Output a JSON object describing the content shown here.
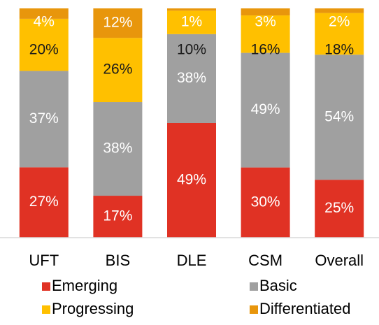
{
  "chart_data": {
    "type": "bar",
    "stacked": "percent",
    "categories": [
      "UFT",
      "BIS",
      "DLE",
      "CSM",
      "Overall"
    ],
    "series": [
      {
        "name": "Emerging",
        "color": "#e03224",
        "label_color": "#ffffff",
        "values": [
          27,
          17,
          49,
          30,
          25
        ],
        "value_labels": [
          "27%",
          "17%",
          "49%",
          "30%",
          "25%"
        ]
      },
      {
        "name": "Basic",
        "color": "#a0a0a0",
        "label_color": "#ffffff",
        "values": [
          37,
          38,
          38,
          49,
          54
        ],
        "value_labels": [
          "37%",
          "38%",
          "38%",
          "49%",
          "54%"
        ]
      },
      {
        "name": "Progressing",
        "color": "#ffc000",
        "label_color": "#1a1a1a",
        "values": [
          20,
          26,
          10,
          16,
          18
        ],
        "value_labels": [
          "20%",
          "26%",
          "10%",
          "16%",
          "18%"
        ]
      },
      {
        "name": "Differentiated",
        "color": "#e8960c",
        "label_color": "#ffffff",
        "values": [
          4,
          12,
          1,
          3,
          2
        ],
        "value_labels": [
          "4%",
          "12%",
          "1%",
          "3%",
          "2%"
        ]
      }
    ]
  }
}
